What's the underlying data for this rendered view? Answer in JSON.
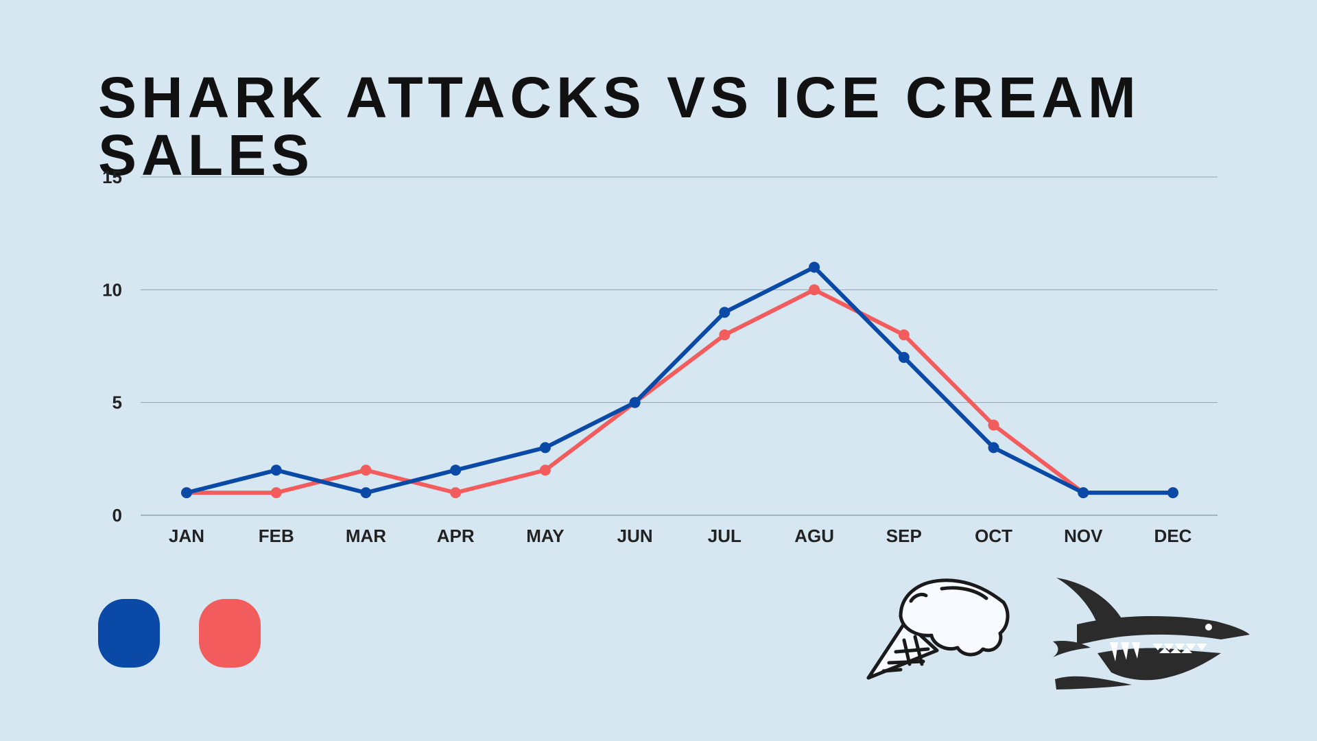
{
  "title": "SHARK ATTACKS VS ICE CREAM SALES",
  "colors": {
    "background": "#d6e7f2",
    "shark_attacks": "#0a4aa6",
    "ice_cream_sales": "#f25c5c",
    "grid": "#8fa3b3",
    "axis_text": "#222222"
  },
  "legend": {
    "items": [
      {
        "color": "#0a4aa6",
        "icon": "blue-swatch"
      },
      {
        "color": "#f25c5c",
        "icon": "red-swatch"
      }
    ]
  },
  "icons": [
    "ice-cream-cone-icon",
    "shark-icon"
  ],
  "chart_data": {
    "type": "line",
    "title": "SHARK ATTACKS VS ICE CREAM SALES",
    "categories": [
      "JAN",
      "FEB",
      "MAR",
      "APR",
      "MAY",
      "JUN",
      "JUL",
      "AGU",
      "SEP",
      "OCT",
      "NOV",
      "DEC"
    ],
    "y_ticks": [
      0,
      5,
      10,
      15
    ],
    "ylim": [
      0,
      15
    ],
    "grid": true,
    "series": [
      {
        "color": "#f25c5c",
        "values": [
          1,
          1,
          2,
          1,
          2,
          5,
          8,
          10,
          8,
          4,
          1,
          1
        ]
      },
      {
        "color": "#0a4aa6",
        "values": [
          1,
          2,
          1,
          2,
          3,
          5,
          9,
          11,
          7,
          3,
          1,
          1
        ]
      }
    ]
  }
}
